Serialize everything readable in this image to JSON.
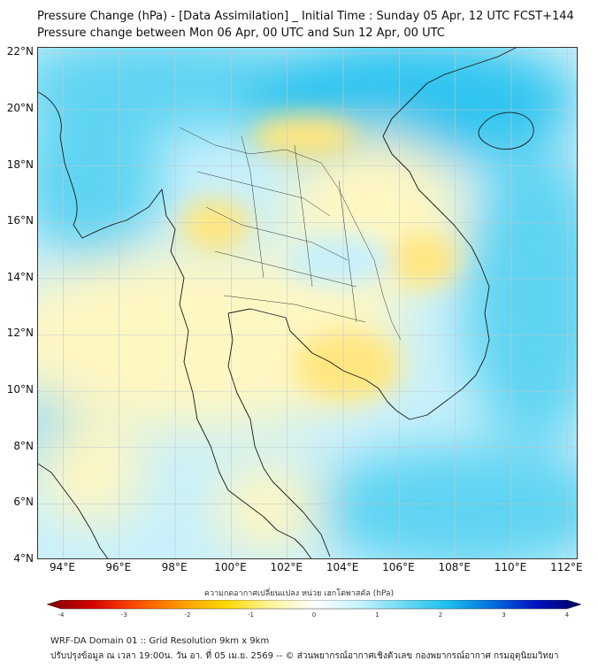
{
  "header": {
    "title_line1": "Pressure Change (hPa) - [Data Assimilation] _ Initial Time : Sunday 05 Apr, 12 UTC FCST+144",
    "title_line2": "Pressure change between Mon 06 Apr, 00 UTC and Sun 12 Apr, 00 UTC"
  },
  "map": {
    "lat_labels": [
      "22°N",
      "20°N",
      "18°N",
      "16°N",
      "14°N",
      "12°N",
      "10°N",
      "8°N",
      "6°N",
      "4°N"
    ],
    "lon_labels": [
      "94°E",
      "96°E",
      "98°E",
      "100°E",
      "102°E",
      "104°E",
      "106°E",
      "108°E",
      "110°E",
      "112°E"
    ],
    "lat_range": [
      4,
      22.2
    ],
    "lon_range": [
      93.1,
      112.4
    ],
    "colors": {
      "negative_light": "#fff7c2",
      "negative_mid": "#ffe680",
      "positive_light": "#c8f0fb",
      "positive_mid": "#5fd4f2",
      "positive_strong": "#2fc4ef",
      "coastline": "#1a1a1a"
    }
  },
  "colorbar": {
    "title": "ความกดอากาศเปลี่ยนแปลง หน่วย เฮกโตพาสคัล (hPa)",
    "tick_labels": [
      "-4",
      "-3",
      "-2",
      "-1",
      "0",
      "1",
      "2",
      "3",
      "4"
    ],
    "range": [
      -4,
      4
    ],
    "colors": [
      "#7a0000",
      "#d40000",
      "#ff4a00",
      "#ff9a00",
      "#ffd800",
      "#fff59a",
      "#ffffff",
      "#c8f3fb",
      "#6fdaf4",
      "#1cc0ee",
      "#0070e0",
      "#0010c0",
      "#000060"
    ]
  },
  "footer": {
    "line1": "WRF-DA Domain 01 :: Grid Resolution 9km x 9km",
    "line2": "ปรับปรุงข้อมูล ณ เวลา 19:00น. วัน อา. ที่ 05 เม.ย. 2569 -- © ส่วนพยากรณ์อากาศเชิงตัวเลข กองพยากรณ์อากาศ กรมอุตุนิยมวิทยา"
  }
}
